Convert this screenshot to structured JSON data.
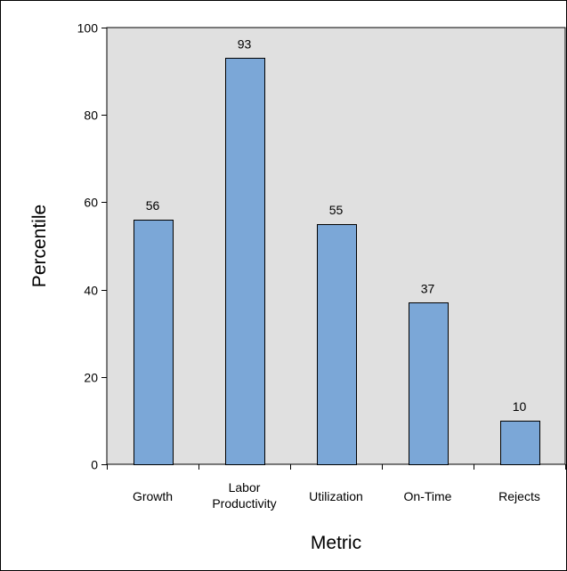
{
  "chart_data": {
    "type": "bar",
    "title": "",
    "categories": [
      [
        "Growth"
      ],
      [
        "Labor",
        "Productivity"
      ],
      [
        "Utilization"
      ],
      [
        "On-Time"
      ],
      [
        "Rejects"
      ]
    ],
    "values": [
      56,
      93,
      55,
      37,
      10
    ],
    "xlabel": "Metric",
    "ylabel": "Percentile",
    "ylim": [
      0,
      100
    ],
    "yticks": [
      0,
      20,
      40,
      60,
      80,
      100
    ],
    "grid": false,
    "legend": "none",
    "colors": {
      "plot_background": "#e0e0e0",
      "bar_fill": "#7ba7d7",
      "bar_stroke": "#000000",
      "axis": "#000000"
    }
  }
}
